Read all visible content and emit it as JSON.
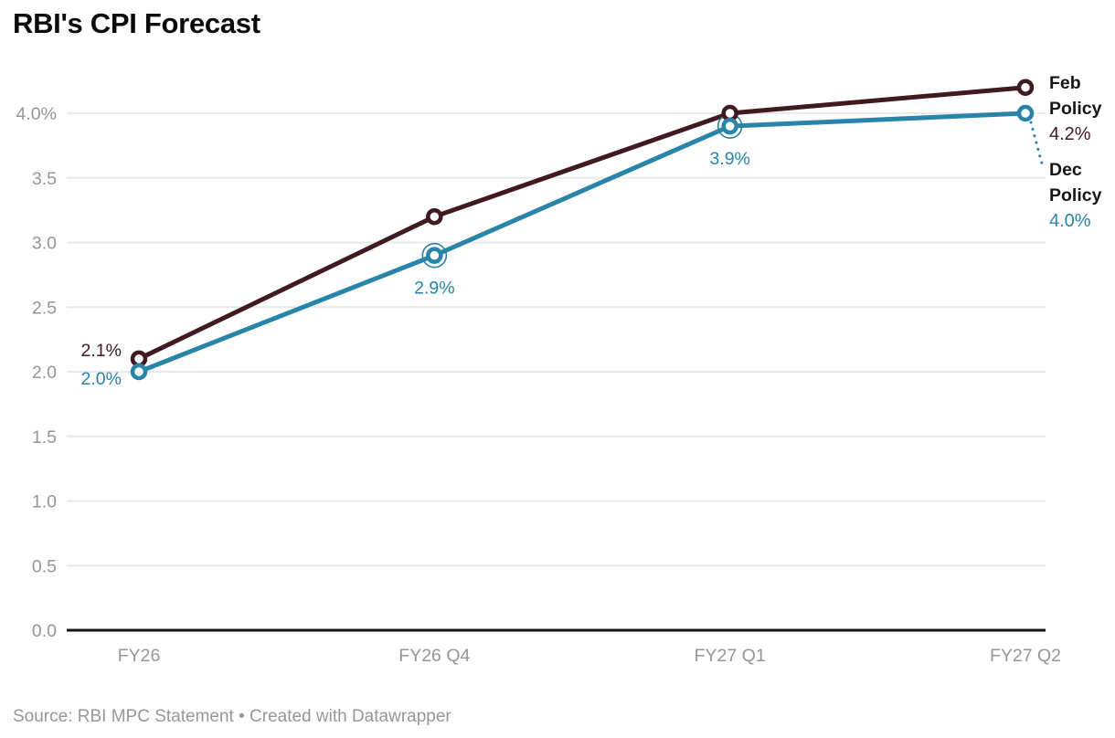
{
  "header": {
    "title": "RBI's CPI Forecast"
  },
  "footer": {
    "source": "Source: RBI MPC Statement • Created with Datawrapper"
  },
  "colors": {
    "feb_policy": "#401a1e",
    "dec_policy": "#2884a8",
    "grid": "#e9e9e9",
    "baseline": "#141414",
    "axis_label": "#969696",
    "end_label_text": "#161616",
    "title": "#0b0b0b",
    "source": "#979797",
    "background": "#ffffff"
  },
  "chart_data": {
    "type": "line",
    "title": "RBI's CPI Forecast",
    "xlabel": "",
    "ylabel": "",
    "grid": true,
    "legend_position": "end-of-line-labels",
    "categories": [
      "FY26",
      "FY26 Q4",
      "FY27 Q1",
      "FY27 Q2"
    ],
    "series": [
      {
        "name": "Feb Policy",
        "color": "#401a1e",
        "values": [
          2.1,
          3.2,
          4.0,
          4.2
        ],
        "point_style": "open-circle",
        "end_label": {
          "lines": [
            "Feb",
            "Policy"
          ],
          "value": "4.2%"
        }
      },
      {
        "name": "Dec Policy",
        "color": "#2884a8",
        "values": [
          2.0,
          2.9,
          3.9,
          4.0
        ],
        "point_style": "open-circle",
        "highlight_rings": [
          1,
          2
        ],
        "leader_line": true,
        "end_label": {
          "lines": [
            "Dec",
            "Policy"
          ],
          "value": "4.0%"
        }
      }
    ],
    "point_labels": [
      {
        "series": 0,
        "point": 0,
        "text": "2.1%",
        "placement": "left-above"
      },
      {
        "series": 1,
        "point": 0,
        "text": "2.0%",
        "placement": "left-below"
      },
      {
        "series": 1,
        "point": 1,
        "text": "2.9%",
        "placement": "below"
      },
      {
        "series": 1,
        "point": 2,
        "text": "3.9%",
        "placement": "below"
      }
    ],
    "y_axis": {
      "range": [
        0,
        4.25
      ],
      "ticks": [
        {
          "value": 0.0,
          "label": "0.0"
        },
        {
          "value": 0.5,
          "label": "0.5"
        },
        {
          "value": 1.0,
          "label": "1.0"
        },
        {
          "value": 1.5,
          "label": "1.5"
        },
        {
          "value": 2.0,
          "label": "2.0"
        },
        {
          "value": 2.5,
          "label": "2.5"
        },
        {
          "value": 3.0,
          "label": "3.0"
        },
        {
          "value": 3.5,
          "label": "3.5"
        },
        {
          "value": 4.0,
          "label": "4.0%"
        }
      ]
    }
  }
}
